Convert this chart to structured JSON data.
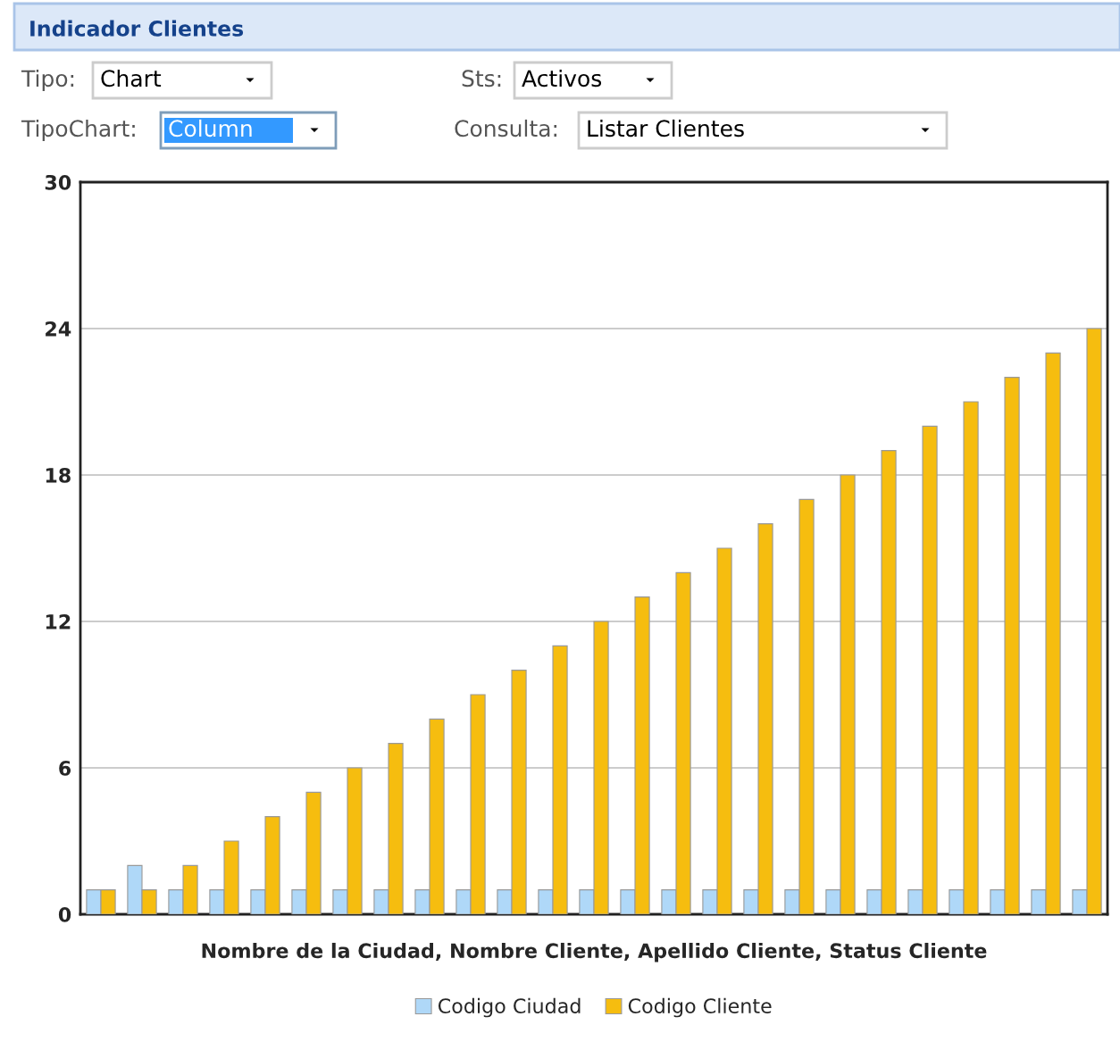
{
  "chart_data": {
    "type": "bar",
    "title": "Indicador Clientes",
    "annotations": [
      "Tipo:",
      "Chart",
      "Sts:",
      "Activos",
      "TipoChart:",
      "Column",
      "Consulta:",
      "Listar Clientes"
    ],
    "xlabel": "Nombre de la Ciudad, Nombre Cliente, Apellido Cliente, Status Cliente",
    "categories": [
      null,
      null,
      null,
      null,
      null,
      null,
      null,
      null,
      null,
      null,
      null,
      null,
      null,
      null,
      null,
      null,
      null,
      null,
      null,
      null,
      null,
      null,
      null,
      null,
      null
    ],
    "series": [
      {
        "name": "Codigo Ciudad",
        "color": "#afd8f8",
        "values": [
          1,
          2,
          1,
          1,
          1,
          1,
          1,
          1,
          1,
          1,
          1,
          1,
          1,
          1,
          1,
          1,
          1,
          1,
          1,
          1,
          1,
          1,
          1,
          1,
          1
        ]
      },
      {
        "name": "Codigo Cliente",
        "color": "#f6bd0f",
        "values": [
          1,
          1,
          2,
          3,
          4,
          5,
          6,
          7,
          8,
          9,
          10,
          11,
          12,
          13,
          14,
          15,
          16,
          17,
          18,
          19,
          20,
          21,
          22,
          23,
          24
        ]
      }
    ],
    "ylim": [
      0,
      30
    ],
    "yticks": [
      0,
      6,
      12,
      18,
      24,
      30
    ],
    "grid": "y",
    "legend": "bottom"
  }
}
